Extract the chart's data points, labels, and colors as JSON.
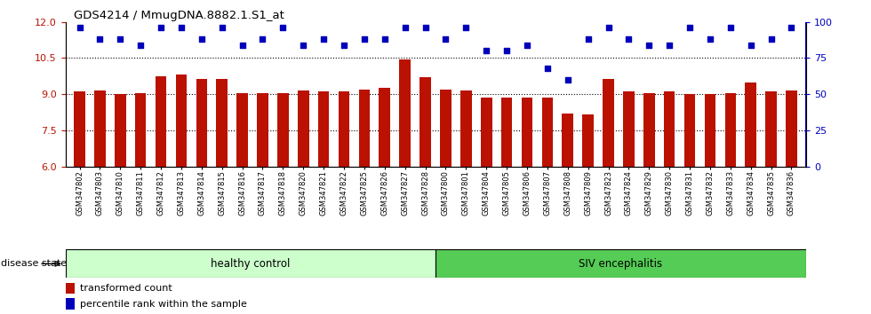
{
  "title": "GDS4214 / MmugDNA.8882.1.S1_at",
  "samples": [
    "GSM347802",
    "GSM347803",
    "GSM347810",
    "GSM347811",
    "GSM347812",
    "GSM347813",
    "GSM347814",
    "GSM347815",
    "GSM347816",
    "GSM347817",
    "GSM347818",
    "GSM347820",
    "GSM347821",
    "GSM347822",
    "GSM347825",
    "GSM347826",
    "GSM347827",
    "GSM347828",
    "GSM347800",
    "GSM347801",
    "GSM347804",
    "GSM347805",
    "GSM347806",
    "GSM347807",
    "GSM347808",
    "GSM347809",
    "GSM347823",
    "GSM347824",
    "GSM347829",
    "GSM347830",
    "GSM347831",
    "GSM347832",
    "GSM347833",
    "GSM347834",
    "GSM347835",
    "GSM347836"
  ],
  "bar_values": [
    9.1,
    9.15,
    9.0,
    9.05,
    9.75,
    9.8,
    9.65,
    9.65,
    9.05,
    9.05,
    9.05,
    9.15,
    9.1,
    9.1,
    9.2,
    9.25,
    10.45,
    9.7,
    9.2,
    9.15,
    8.85,
    8.85,
    8.85,
    8.85,
    8.2,
    8.15,
    9.65,
    9.1,
    9.05,
    9.1,
    9.0,
    9.0,
    9.05,
    9.5,
    9.1,
    9.15
  ],
  "percentile_values": [
    96,
    88,
    88,
    84,
    96,
    96,
    88,
    96,
    84,
    88,
    96,
    84,
    88,
    84,
    88,
    88,
    96,
    96,
    88,
    96,
    80,
    80,
    84,
    68,
    60,
    88,
    96,
    88,
    84,
    84,
    96,
    88,
    96,
    84,
    88,
    96
  ],
  "healthy_count": 18,
  "bar_color": "#bb1100",
  "dot_color": "#0000bb",
  "ylim_left": [
    6,
    12
  ],
  "ylim_right": [
    0,
    100
  ],
  "yticks_left": [
    6,
    7.5,
    9,
    10.5,
    12
  ],
  "yticks_right": [
    0,
    25,
    50,
    75,
    100
  ],
  "grid_lines": [
    7.5,
    9.0,
    10.5
  ],
  "healthy_label": "healthy control",
  "siv_label": "SIV encephalitis",
  "disease_state_label": "disease state",
  "legend_bar_label": "transformed count",
  "legend_dot_label": "percentile rank within the sample",
  "healthy_color": "#ccffcc",
  "siv_color": "#55cc55",
  "bar_width": 0.55
}
